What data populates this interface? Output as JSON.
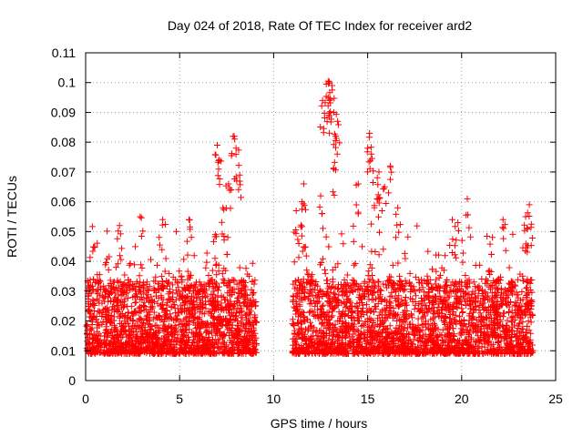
{
  "chart_data": {
    "type": "scatter",
    "title": "Day 024 of 2018, Rate Of TEC Index for receiver ard2",
    "xlabel": "GPS time / hours",
    "ylabel": "ROTI / TECUs",
    "xlim": [
      0,
      25
    ],
    "ylim": [
      0,
      0.11
    ],
    "x_ticks": [
      0,
      5,
      10,
      15,
      20,
      25
    ],
    "x_tick_labels": [
      "0",
      "5",
      "10",
      "15",
      "20",
      "25"
    ],
    "y_ticks": [
      0,
      0.01,
      0.02,
      0.03,
      0.04,
      0.05,
      0.06,
      0.07,
      0.08,
      0.09,
      0.1,
      0.11
    ],
    "y_tick_labels": [
      "0",
      "0.01",
      "0.02",
      "0.03",
      "0.04",
      "0.05",
      "0.06",
      "0.07",
      "0.08",
      "0.09",
      "0.1",
      "0.11"
    ],
    "grid": true,
    "marker": "+",
    "series": [
      {
        "name": "ROTI",
        "color": "#ff0000",
        "time_ranges": [
          [
            0,
            9.1
          ],
          [
            11.0,
            23.8
          ]
        ],
        "baseline_range": [
          0.005,
          0.03
        ],
        "notable_points": [
          {
            "x": 7.0,
            "y": 0.079
          },
          {
            "x": 7.1,
            "y": 0.074
          },
          {
            "x": 7.9,
            "y": 0.082
          },
          {
            "x": 8.0,
            "y": 0.078
          },
          {
            "x": 7.6,
            "y": 0.066
          },
          {
            "x": 8.2,
            "y": 0.069
          },
          {
            "x": 7.3,
            "y": 0.058
          },
          {
            "x": 6.9,
            "y": 0.049
          },
          {
            "x": 5.5,
            "y": 0.054
          },
          {
            "x": 4.1,
            "y": 0.054
          },
          {
            "x": 2.9,
            "y": 0.055
          },
          {
            "x": 1.8,
            "y": 0.052
          },
          {
            "x": 12.8,
            "y": 0.0995
          },
          {
            "x": 12.9,
            "y": 0.1005
          },
          {
            "x": 13.1,
            "y": 0.099
          },
          {
            "x": 12.6,
            "y": 0.094
          },
          {
            "x": 12.9,
            "y": 0.095
          },
          {
            "x": 13.2,
            "y": 0.09
          },
          {
            "x": 13.4,
            "y": 0.087
          },
          {
            "x": 13.3,
            "y": 0.082
          },
          {
            "x": 15.1,
            "y": 0.083
          },
          {
            "x": 15.0,
            "y": 0.078
          },
          {
            "x": 15.2,
            "y": 0.076
          },
          {
            "x": 16.2,
            "y": 0.072
          },
          {
            "x": 15.6,
            "y": 0.07
          },
          {
            "x": 13.2,
            "y": 0.071
          },
          {
            "x": 15.9,
            "y": 0.065
          },
          {
            "x": 15.5,
            "y": 0.061
          },
          {
            "x": 11.6,
            "y": 0.066
          },
          {
            "x": 11.5,
            "y": 0.06
          },
          {
            "x": 14.5,
            "y": 0.066
          },
          {
            "x": 20.3,
            "y": 0.061
          },
          {
            "x": 23.6,
            "y": 0.059
          },
          {
            "x": 23.4,
            "y": 0.055
          },
          {
            "x": 22.2,
            "y": 0.054
          },
          {
            "x": 19.5,
            "y": 0.054
          },
          {
            "x": 19.8,
            "y": 0.053
          },
          {
            "x": 16.6,
            "y": 0.058
          },
          {
            "x": 11.2,
            "y": 0.057
          },
          {
            "x": 12.5,
            "y": 0.062
          }
        ]
      }
    ]
  }
}
